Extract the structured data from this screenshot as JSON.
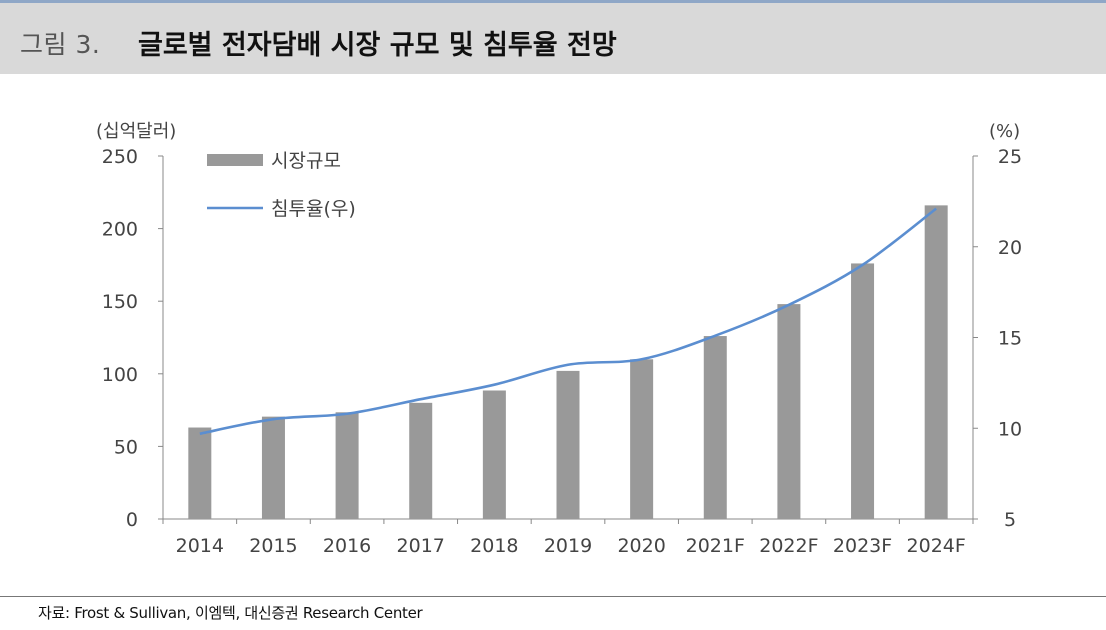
{
  "figure": {
    "number": "그림 3.",
    "title": "글로벌 전자담배 시장 규모 및 침투율 전망"
  },
  "source": "자료:  Frost & Sullivan, 이엠텍, 대신증권 Research Center",
  "colors": {
    "bar": "#999999",
    "line": "#5b8ed0",
    "band": "#d9d9d9",
    "top_rule": "#8fa7c7"
  },
  "chart_data": {
    "type": "bar",
    "title": "",
    "categories": [
      "2014",
      "2015",
      "2016",
      "2017",
      "2018",
      "2019",
      "2020",
      "2021F",
      "2022F",
      "2023F",
      "2024F"
    ],
    "series": [
      {
        "name": "시장규모",
        "type": "bar",
        "axis": "left",
        "values": [
          63,
          70.5,
          73.5,
          80,
          88.5,
          102,
          110,
          126,
          148,
          176,
          216
        ]
      },
      {
        "name": "침투율(우)",
        "type": "line",
        "axis": "right",
        "values": [
          9.7,
          10.5,
          10.8,
          11.6,
          12.4,
          13.5,
          13.8,
          15.1,
          16.8,
          19.0,
          22.1
        ]
      }
    ],
    "ylabel": "(십억달러)",
    "ylabel_right": "(%)",
    "ylim": [
      0,
      250
    ],
    "ylim_right": [
      5,
      25
    ],
    "yticks": [
      0,
      50,
      100,
      150,
      200,
      250
    ],
    "yticks_right": [
      5,
      10,
      15,
      20,
      25
    ],
    "legend": "top-left",
    "grid": false
  }
}
